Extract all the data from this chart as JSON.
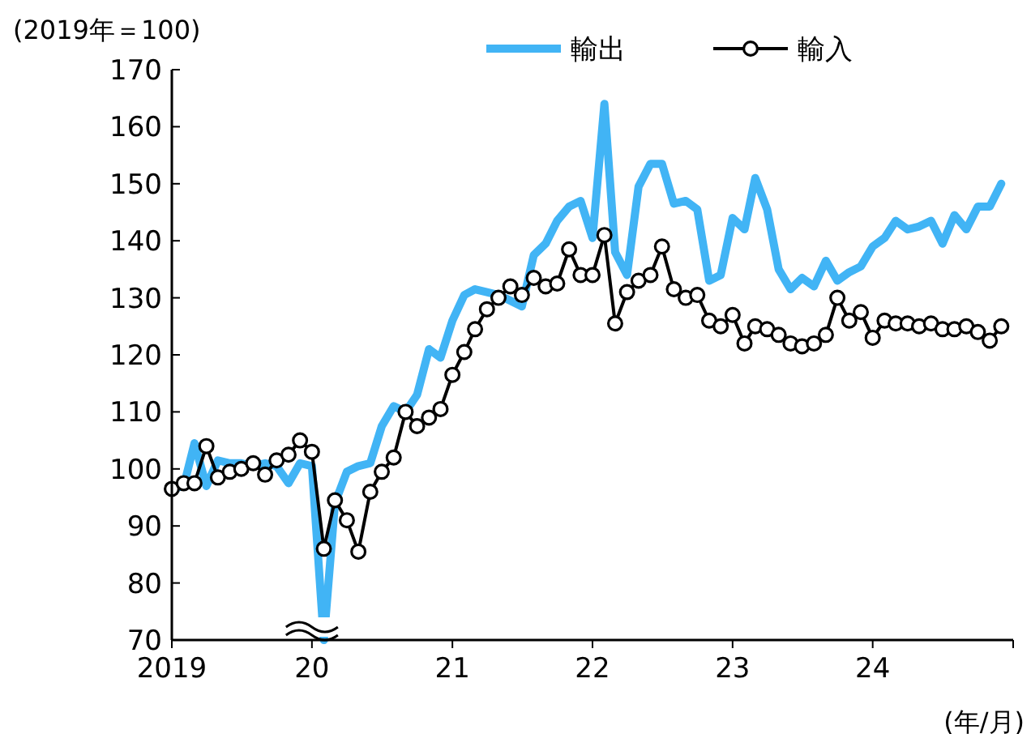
{
  "chart_data": {
    "type": "line",
    "ylabel": "(2019年＝100)",
    "xlabel": "(年/月)",
    "x": [
      "2019-01",
      "2019-02",
      "2019-03",
      "2019-04",
      "2019-05",
      "2019-06",
      "2019-07",
      "2019-08",
      "2019-09",
      "2019-10",
      "2019-11",
      "2019-12",
      "2020-01",
      "2020-02",
      "2020-03",
      "2020-04",
      "2020-05",
      "2020-06",
      "2020-07",
      "2020-08",
      "2020-09",
      "2020-10",
      "2020-11",
      "2020-12",
      "2021-01",
      "2021-02",
      "2021-03",
      "2021-04",
      "2021-05",
      "2021-06",
      "2021-07",
      "2021-08",
      "2021-09",
      "2021-10",
      "2021-11",
      "2021-12",
      "2022-01",
      "2022-02",
      "2022-03",
      "2022-04",
      "2022-05",
      "2022-06",
      "2022-07",
      "2022-08",
      "2022-09",
      "2022-10",
      "2022-11",
      "2022-12",
      "2023-01",
      "2023-02",
      "2023-03",
      "2023-04",
      "2023-05",
      "2023-06",
      "2023-07",
      "2023-08",
      "2023-09",
      "2023-10",
      "2023-11",
      "2023-12",
      "2024-01",
      "2024-02",
      "2024-03",
      "2024-04",
      "2024-05",
      "2024-06",
      "2024-07",
      "2024-08",
      "2024-09",
      "2024-10",
      "2024-11",
      "2024-12"
    ],
    "series": [
      {
        "name": "輸出",
        "color": "#41b4f5",
        "marker": "none",
        "values": [
          96.5,
          97,
          104.5,
          97,
          101.5,
          101,
          101,
          100.5,
          101,
          100.5,
          97.5,
          101,
          100.5,
          70,
          94,
          99.5,
          100.5,
          101,
          107.5,
          111,
          110,
          113,
          121,
          119.5,
          126,
          130.5,
          131.5,
          131,
          130.5,
          129.5,
          128.5,
          137.5,
          139.5,
          143.5,
          146,
          147,
          140.5,
          164,
          138,
          134,
          149.5,
          153.5,
          153.5,
          146.5,
          147,
          145.5,
          133,
          134,
          144,
          142,
          151,
          145.5,
          135,
          131.5,
          133.5,
          132,
          136.5,
          133,
          134.5,
          135.5,
          139,
          140.5,
          143.5,
          142,
          142.5,
          143.5,
          139.5,
          144.5,
          142,
          146,
          146,
          150
        ]
      },
      {
        "name": "輸入",
        "color": "#000000",
        "marker": "circle",
        "values": [
          96.5,
          97.5,
          97.5,
          104,
          98.5,
          99.5,
          100,
          101,
          99,
          101.5,
          102.5,
          105,
          103,
          86,
          94.5,
          91,
          85.5,
          96,
          99.5,
          102,
          110,
          107.5,
          109,
          110.5,
          116.5,
          120.5,
          124.5,
          128,
          130,
          132,
          130.5,
          133.5,
          132,
          132.5,
          138.5,
          134,
          134,
          141,
          125.5,
          131,
          133,
          134,
          139,
          131.5,
          130,
          130.5,
          126,
          125,
          127,
          122,
          125,
          124.5,
          123.5,
          122,
          121.5,
          122,
          123.5,
          130,
          126,
          127.5,
          123,
          126,
          125.5,
          125.5,
          125,
          125.5,
          124.5,
          124.5,
          125,
          124,
          122.5,
          125
        ]
      }
    ],
    "xlim": [
      "2019-01",
      "2025-01"
    ],
    "xticks": [
      {
        "value": "2019-01",
        "label": "2019"
      },
      {
        "value": "2020-01",
        "label": "20"
      },
      {
        "value": "2021-01",
        "label": "21"
      },
      {
        "value": "2022-01",
        "label": "22"
      },
      {
        "value": "2023-01",
        "label": "23"
      },
      {
        "value": "2024-01",
        "label": "24"
      },
      {
        "value": "2025-01",
        "label": null
      }
    ],
    "ylim": [
      70,
      170
    ],
    "yticks": [
      70,
      80,
      90,
      100,
      110,
      120,
      130,
      140,
      150,
      160,
      170
    ],
    "legend": "top",
    "grid": false
  }
}
